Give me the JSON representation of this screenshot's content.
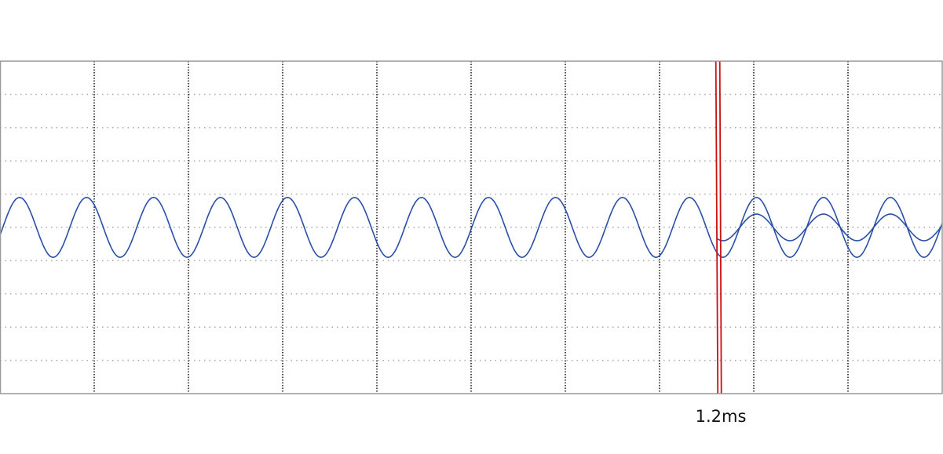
{
  "chart_data": {
    "type": "line",
    "title": "",
    "xlabel": "",
    "ylabel": "",
    "x_divisions": 10,
    "y_divisions": 10,
    "xlim": [
      0,
      10
    ],
    "ylim": [
      -5,
      5
    ],
    "grid": true,
    "series": [
      {
        "values_desc": "sine",
        "amplitude": 0.9,
        "period": 0.711,
        "x_start": 0,
        "x_end": 10,
        "color": "#2a4fa8"
      },
      {
        "values_desc": "sine",
        "amplitude": 0.4,
        "period": 0.711,
        "x_start": 7.61,
        "x_end": 10,
        "color": "#2a4fa8"
      }
    ],
    "markers": [
      {
        "x": 7.61,
        "label": "1.2ms",
        "color": "#cc1111"
      }
    ],
    "colors": {
      "frame": "#999999",
      "vgrid": "#111111",
      "hgrid": "#aaaaaa",
      "wave": "#2a4fa8",
      "marker": "#cc1111"
    }
  }
}
